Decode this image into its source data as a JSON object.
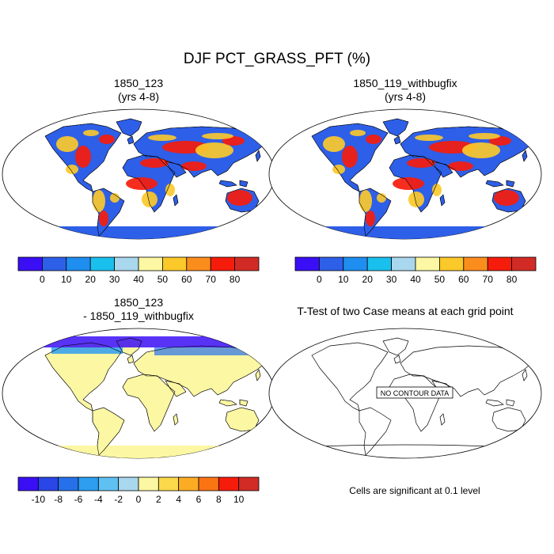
{
  "title": "DJF PCT_GRASS_PFT (%)",
  "panels": [
    {
      "title_lines": [
        "1850_123",
        "(yrs 4-8)"
      ],
      "field": "case_a"
    },
    {
      "title_lines": [
        "1850_119_withbugfix",
        "(yrs 4-8)"
      ],
      "field": "case_b"
    },
    {
      "title_lines": [
        "1850_123",
        "- 1850_119_withbugfix"
      ],
      "field": "difference"
    },
    {
      "title_lines": [
        "T-Test of two Case means at each grid point"
      ],
      "field": "ttest",
      "no_data_label": "NO CONTOUR DATA"
    }
  ],
  "colorbars": [
    {
      "name": "value-colorbar-left",
      "ticks": [
        "0",
        "10",
        "20",
        "30",
        "40",
        "50",
        "60",
        "70",
        "80"
      ],
      "colors": [
        "#3b0ff5",
        "#2e5fe8",
        "#1e8ef0",
        "#19c0ee",
        "#a9d7ee",
        "#fbf7a3",
        "#fcc92a",
        "#fb8d1c",
        "#f61c0c",
        "#d22b26"
      ]
    },
    {
      "name": "value-colorbar-right",
      "ticks": [
        "0",
        "10",
        "20",
        "30",
        "40",
        "50",
        "60",
        "70",
        "80"
      ],
      "colors": [
        "#3b0ff5",
        "#2e5fe8",
        "#1e8ef0",
        "#19c0ee",
        "#a9d7ee",
        "#fbf7a3",
        "#fcc92a",
        "#fb8d1c",
        "#f61c0c",
        "#d22b26"
      ]
    },
    {
      "name": "difference-colorbar",
      "ticks": [
        "-10",
        "-8",
        "-6",
        "-4",
        "-2",
        "0",
        "2",
        "4",
        "6",
        "8",
        "10"
      ],
      "colors": [
        "#3b0ff5",
        "#2a46e6",
        "#2671ea",
        "#2d9ef0",
        "#5fc0f2",
        "#a9d7ee",
        "#fbf7a3",
        "#fcd94a",
        "#fcac24",
        "#fb7414",
        "#f61c0c",
        "#d22b26"
      ]
    }
  ],
  "footnote": "Cells are significant at 0.1 level",
  "chart_data": {
    "type": "heatmap",
    "title": "DJF PCT_GRASS_PFT (%)",
    "variable": "PCT_GRASS_PFT",
    "units": "%",
    "season": "DJF",
    "cases": [
      "1850_123",
      "1850_119_withbugfix"
    ],
    "years": "4-8",
    "value_scale": {
      "levels": [
        0,
        10,
        20,
        30,
        40,
        50,
        60,
        70,
        80
      ]
    },
    "difference_scale": {
      "levels": [
        -10,
        -8,
        -6,
        -4,
        -2,
        0,
        2,
        4,
        6,
        8,
        10
      ]
    },
    "ttest_significance_level": 0.1
  },
  "colors": {
    "land_low": "#2e5fe8",
    "land_high": "#f61c0c",
    "land_mid": "#fcc92a",
    "diff_zero": "#fbf7a3",
    "diff_neg": "#3b0ff5"
  }
}
